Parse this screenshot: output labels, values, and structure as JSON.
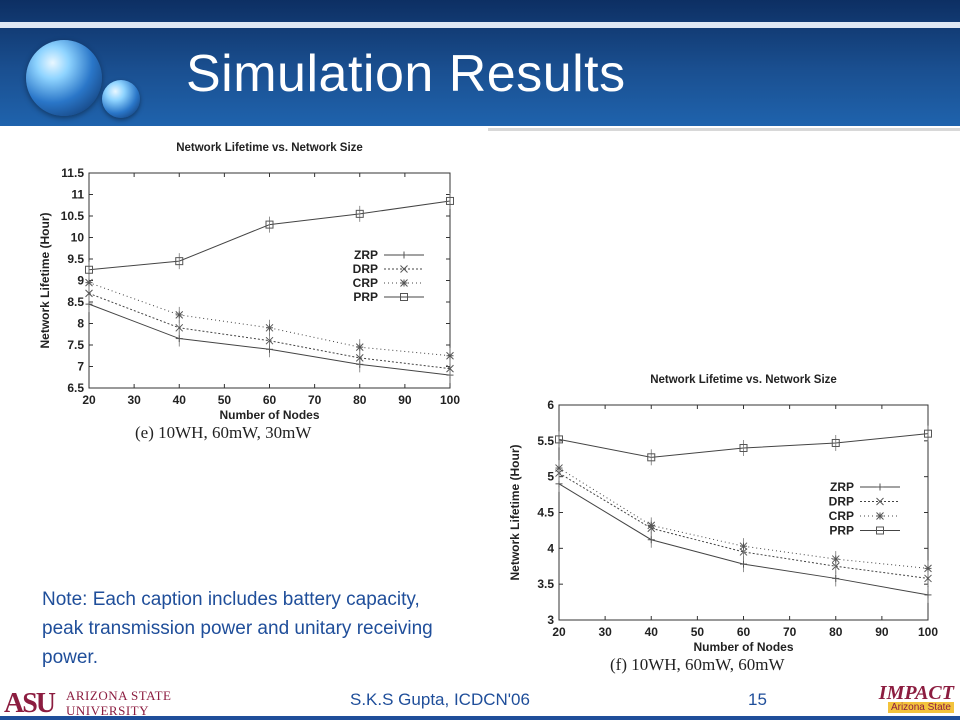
{
  "slide": {
    "title": "Simulation Results",
    "note": "Note: Each caption includes battery capacity, peak transmission power and unitary receiving power.",
    "footer": "S.K.S Gupta, ICDCN'06",
    "page_number": "15",
    "logo_asu_mark": "ASU",
    "logo_asu_name_line1": "ARIZONA STATE",
    "logo_asu_name_line2": "UNIVERSITY",
    "logo_impact": "IMPACT",
    "logo_impact_sub": "Arizona State"
  },
  "colors": {
    "header_dark": "#0d2f63",
    "header_light": "#1f63ad",
    "note_text": "#1f4e9a",
    "asu_maroon": "#8c1d40"
  },
  "chart_data": [
    {
      "type": "line",
      "title": "Network Lifetime vs. Network Size",
      "xlabel": "Number of Nodes",
      "ylabel": "Network Lifetime (Hour)",
      "caption": "(e)  10WH, 60mW, 30mW",
      "x": [
        20,
        40,
        60,
        80,
        100
      ],
      "xticks": [
        20,
        30,
        40,
        50,
        60,
        70,
        80,
        90,
        100
      ],
      "yticks": [
        6.5,
        7,
        7.5,
        8,
        8.5,
        9,
        9.5,
        10,
        10.5,
        11,
        11.5
      ],
      "xlim": [
        20,
        100
      ],
      "ylim": [
        6.5,
        11.5
      ],
      "legend_position": "right-middle",
      "series": [
        {
          "name": "ZRP",
          "marker": "plus",
          "dash": "",
          "values": [
            8.45,
            7.65,
            7.4,
            7.05,
            6.8
          ]
        },
        {
          "name": "DRP",
          "marker": "x",
          "dash": "2,2",
          "values": [
            8.7,
            7.9,
            7.6,
            7.2,
            6.95
          ]
        },
        {
          "name": "CRP",
          "marker": "star",
          "dash": "1,3",
          "values": [
            8.95,
            8.2,
            7.9,
            7.45,
            7.25
          ]
        },
        {
          "name": "PRP",
          "marker": "square",
          "dash": "",
          "values": [
            9.25,
            9.45,
            10.3,
            10.55,
            10.85
          ]
        }
      ]
    },
    {
      "type": "line",
      "title": "Network Lifetime vs. Network Size",
      "xlabel": "Number of Nodes",
      "ylabel": "Network Lifetime (Hour)",
      "caption": "(f)  10WH, 60mW, 60mW",
      "x": [
        20,
        40,
        60,
        80,
        100
      ],
      "xticks": [
        20,
        30,
        40,
        50,
        60,
        70,
        80,
        90,
        100
      ],
      "yticks": [
        3,
        3.5,
        4,
        4.5,
        5,
        5.5,
        6
      ],
      "xlim": [
        20,
        100
      ],
      "ylim": [
        3,
        6
      ],
      "legend_position": "right-middle",
      "series": [
        {
          "name": "ZRP",
          "marker": "plus",
          "dash": "",
          "values": [
            4.9,
            4.12,
            3.78,
            3.58,
            3.35
          ]
        },
        {
          "name": "DRP",
          "marker": "x",
          "dash": "2,2",
          "values": [
            5.05,
            4.28,
            3.95,
            3.75,
            3.58
          ]
        },
        {
          "name": "CRP",
          "marker": "star",
          "dash": "1,3",
          "values": [
            5.12,
            4.32,
            4.03,
            3.85,
            3.72
          ]
        },
        {
          "name": "PRP",
          "marker": "square",
          "dash": "",
          "values": [
            5.52,
            5.27,
            5.4,
            5.47,
            5.6
          ]
        }
      ]
    }
  ]
}
